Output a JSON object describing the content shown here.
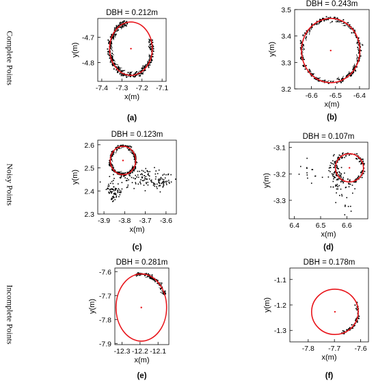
{
  "row_labels": [
    "Complete Points",
    "Noisy Points",
    "Incomplete Points"
  ],
  "colors": {
    "fit_circle": "#e8141a",
    "center": "#e8141a",
    "points": "#000000",
    "axes": "#000000"
  },
  "chart_data": [
    {
      "type": "scatter",
      "panel": "(a)",
      "title": "DBH = 0.212m",
      "xlabel": "x(m)",
      "ylabel": "y(m)",
      "xlim": [
        -7.42,
        -7.08
      ],
      "ylim": [
        -4.875,
        -4.625
      ],
      "xticks": [
        -7.4,
        -7.3,
        -7.2,
        -7.1
      ],
      "yticks": [
        -4.8,
        -4.7
      ],
      "xtick_labels": [
        "-7.4",
        "-7.3",
        "-7.2",
        "-7.1"
      ],
      "ytick_labels": [
        "-4.8",
        "-4.7"
      ],
      "fit_circle": {
        "center": [
          -7.255,
          -4.745
        ],
        "radius": 0.106
      },
      "points": {
        "arc_start_deg": 100,
        "arc_end_deg": 380,
        "radial_noise": 0.006,
        "count": 260,
        "inner_ticks": true
      }
    },
    {
      "type": "scatter",
      "panel": "(b)",
      "title": "DBH = 0.243m",
      "xlabel": "x(m)",
      "ylabel": "y(m)",
      "xlim": [
        -6.67,
        -6.36
      ],
      "ylim": [
        3.2,
        3.5
      ],
      "xticks": [
        -6.6,
        -6.5,
        -6.4
      ],
      "yticks": [
        3.2,
        3.3,
        3.4,
        3.5
      ],
      "xtick_labels": [
        "-6.6",
        "-6.5",
        "-6.4"
      ],
      "ytick_labels": [
        "3.2",
        "3.3",
        "3.4",
        "3.5"
      ],
      "fit_circle": {
        "center": [
          -6.52,
          3.345
        ],
        "radius": 0.1215
      },
      "points": {
        "arc_start_deg": 0,
        "arc_end_deg": 360,
        "radial_noise": 0.004,
        "count": 230,
        "inner_ticks": true
      }
    },
    {
      "type": "scatter",
      "panel": "(c)",
      "title": "DBH = 0.123m",
      "xlabel": "x(m)",
      "ylabel": "y(m)",
      "xlim": [
        -3.93,
        -3.55
      ],
      "ylim": [
        2.3,
        2.62
      ],
      "xticks": [
        -3.9,
        -3.8,
        -3.7,
        -3.6
      ],
      "yticks": [
        2.3,
        2.4,
        2.5,
        2.6
      ],
      "xtick_labels": [
        "-3.9",
        "-3.8",
        "-3.7",
        "-3.6"
      ],
      "ytick_labels": [
        "2.3",
        "2.4",
        "2.5",
        "2.6"
      ],
      "fit_circle": {
        "center": [
          -3.808,
          2.532
        ],
        "radius": 0.0615
      },
      "points": {
        "arc_start_deg": 0,
        "arc_end_deg": 360,
        "radial_noise": 0.004,
        "count": 170,
        "inner_ticks": true,
        "noise_clusters": [
          {
            "cx": -3.72,
            "cy": 2.455,
            "sx": 0.07,
            "sy": 0.022,
            "n": 110
          },
          {
            "cx": -3.85,
            "cy": 2.4,
            "sx": 0.015,
            "sy": 0.022,
            "n": 70
          },
          {
            "cx": -3.62,
            "cy": 2.435,
            "sx": 0.03,
            "sy": 0.015,
            "n": 40
          }
        ]
      }
    },
    {
      "type": "scatter",
      "panel": "(d)",
      "title": "DBH = 0.107m",
      "xlabel": "x(m)",
      "ylabel": "y(m)",
      "xlim": [
        6.38,
        6.68
      ],
      "ylim": [
        -3.37,
        -3.08
      ],
      "xticks": [
        6.4,
        6.5,
        6.6
      ],
      "yticks": [
        -3.3,
        -3.2,
        -3.1
      ],
      "xtick_labels": [
        "6.4",
        "6.5",
        "6.6"
      ],
      "ytick_labels": [
        "-3.3",
        "-3.2",
        "-3.1"
      ],
      "fit_circle": {
        "center": [
          6.61,
          -3.177
        ],
        "radius": 0.0535
      },
      "points": {
        "arc_start_deg": 0,
        "arc_end_deg": 360,
        "radial_noise": 0.004,
        "count": 120,
        "inner_ticks": false,
        "noise_clusters": [
          {
            "cx": 6.56,
            "cy": -3.2,
            "sx": 0.02,
            "sy": 0.04,
            "n": 60
          },
          {
            "cx": 6.47,
            "cy": -3.18,
            "sx": 0.04,
            "sy": 0.03,
            "n": 18
          },
          {
            "cx": 6.6,
            "cy": -3.29,
            "sx": 0.02,
            "sy": 0.03,
            "n": 15
          }
        ]
      }
    },
    {
      "type": "scatter",
      "panel": "(e)",
      "title": "DBH = 0.281m",
      "xlabel": "x(m)",
      "ylabel": "y(m)",
      "xlim": [
        -12.34,
        -12.04
      ],
      "ylim": [
        -7.905,
        -7.585
      ],
      "xticks": [
        -12.3,
        -12.2,
        -12.1
      ],
      "yticks": [
        -7.9,
        -7.8,
        -7.7,
        -7.6
      ],
      "xtick_labels": [
        "-12.3",
        "-12.2",
        "-12.1"
      ],
      "ytick_labels": [
        "-7.9",
        "-7.8",
        "-7.7",
        "-7.6"
      ],
      "fit_circle": {
        "center": [
          -12.193,
          -7.75
        ],
        "radius": 0.1405
      },
      "points": {
        "arc_start_deg": 22,
        "arc_end_deg": 102,
        "radial_noise": 0.004,
        "count": 80,
        "inner_ticks": true
      }
    },
    {
      "type": "scatter",
      "panel": "(f)",
      "title": "DBH = 0.178m",
      "xlabel": "x(m)",
      "ylabel": "y(m)",
      "xlim": [
        -7.87,
        -7.57
      ],
      "ylim": [
        -1.345,
        -1.055
      ],
      "xticks": [
        -7.8,
        -7.7,
        -7.6
      ],
      "yticks": [
        -1.3,
        -1.2,
        -1.1
      ],
      "xtick_labels": [
        "-7.8",
        "-7.7",
        "-7.6"
      ],
      "ytick_labels": [
        "-1.3",
        "-1.2",
        "-1.1"
      ],
      "fit_circle": {
        "center": [
          -7.698,
          -1.227
        ],
        "radius": 0.089
      },
      "points": {
        "arc_start_deg": -72,
        "arc_end_deg": 28,
        "radial_noise": 0.003,
        "count": 60,
        "inner_ticks": false
      }
    }
  ]
}
